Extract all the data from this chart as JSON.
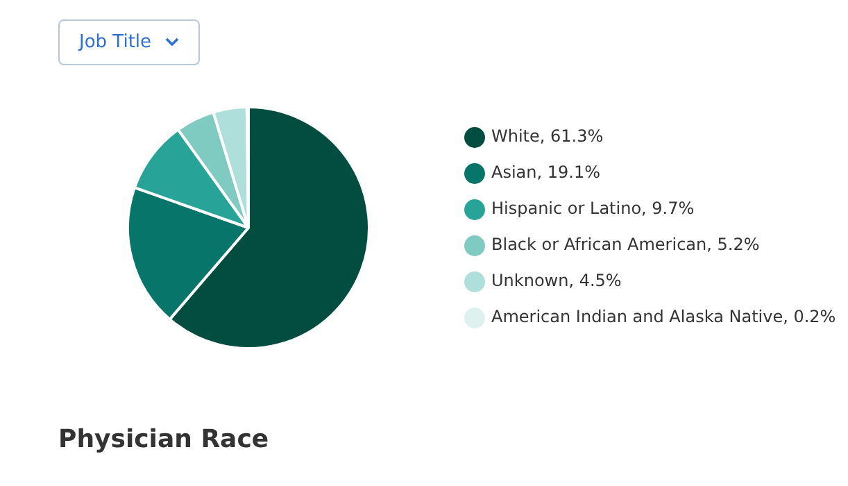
{
  "chart_data": {
    "type": "pie",
    "title": "Physician Race",
    "annotations": [
      "Job Title"
    ],
    "categories": [
      "White",
      "Asian",
      "Hispanic or Latino",
      "Black or African American",
      "Unknown",
      "American Indian and Alaska Native"
    ],
    "values": [
      61.3,
      19.1,
      9.7,
      5.2,
      4.5,
      0.2
    ],
    "value_labels": [
      "61.3%",
      "19.1%",
      "9.7%",
      "5.2%",
      "4.5%",
      "0.2%"
    ],
    "colors": [
      "#024d40",
      "#07756a",
      "#27a497",
      "#7fcbc1",
      "#afdfda",
      "#dff1ef"
    ],
    "legend": "right"
  }
}
